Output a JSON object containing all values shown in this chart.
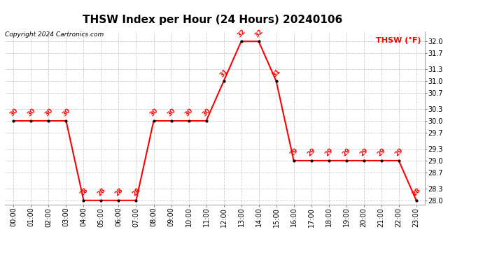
{
  "title": "THSW Index per Hour (24 Hours) 20240106",
  "copyright": "Copyright 2024 Cartronics.com",
  "legend_label": "THSW (°F)",
  "line_color": "red",
  "marker_color": "black",
  "ylim": [
    27.9,
    32.25
  ],
  "yticks": [
    28.0,
    28.3,
    28.7,
    29.0,
    29.3,
    29.7,
    30.0,
    30.3,
    30.7,
    31.0,
    31.3,
    31.7,
    32.0
  ],
  "background_color": "#ffffff",
  "hours": [
    0,
    1,
    2,
    3,
    4,
    5,
    6,
    7,
    8,
    9,
    10,
    11,
    12,
    13,
    14,
    15,
    16,
    17,
    18,
    19,
    20,
    21,
    22,
    23
  ],
  "values": [
    30,
    30,
    30,
    30,
    28,
    28,
    28,
    28,
    30,
    30,
    30,
    30,
    31,
    32,
    32,
    31,
    29,
    29,
    29,
    29,
    29,
    29,
    29,
    28
  ],
  "hour_labels": [
    "00:00",
    "01:00",
    "02:00",
    "03:00",
    "04:00",
    "05:00",
    "06:00",
    "07:00",
    "08:00",
    "09:00",
    "10:00",
    "11:00",
    "12:00",
    "13:00",
    "14:00",
    "15:00",
    "16:00",
    "17:00",
    "18:00",
    "19:00",
    "20:00",
    "21:00",
    "22:00",
    "23:00"
  ],
  "title_fontsize": 11,
  "copyright_fontsize": 6.5,
  "legend_fontsize": 8,
  "tick_label_fontsize": 7,
  "data_label_fontsize": 6.5,
  "grid_color": "#cccccc",
  "grid_linestyle": "--"
}
